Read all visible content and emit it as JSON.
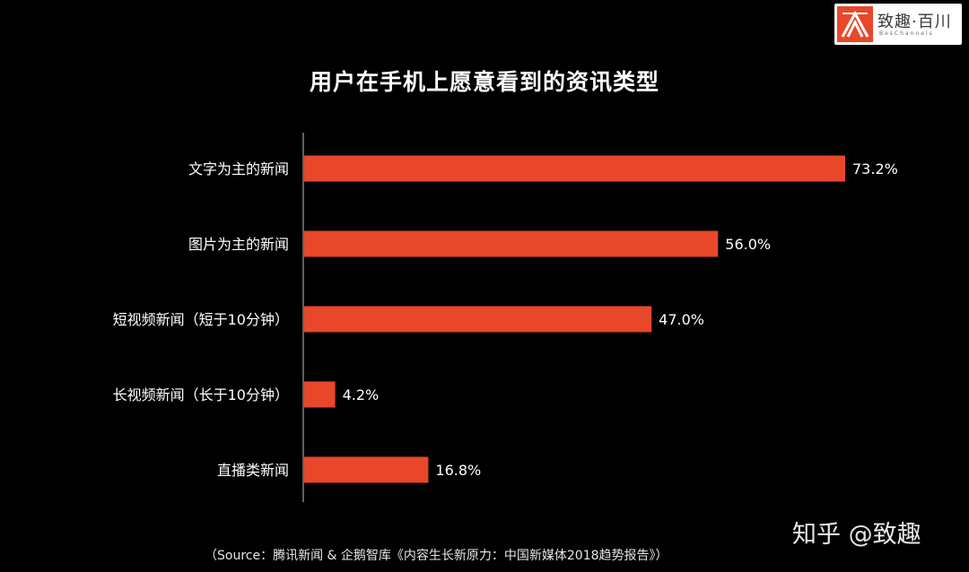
{
  "logo": {
    "name": "致趣·百川",
    "sub": "BesChannels"
  },
  "watermark": "知乎 @致趣",
  "source": "（Source：腾讯新闻 & 企鹅智库《内容生长新原力：中国新媒体2018趋势报告》）",
  "colors": {
    "bar": "#E8472A",
    "background": "#000000",
    "text": "#FFFFFF",
    "axis": "#BFBFBF"
  },
  "chart_data": {
    "type": "bar",
    "orientation": "horizontal",
    "title": "用户在手机上愿意看到的资讯类型",
    "categories": [
      "文字为主的新闻",
      "图片为主的新闻",
      "短视频新闻（短于10分钟）",
      "长视频新闻（长于10分钟）",
      "直播类新闻"
    ],
    "values": [
      73.2,
      56.0,
      47.0,
      4.2,
      16.8
    ],
    "labels": [
      "73.2%",
      "56.0%",
      "47.0%",
      "4.2%",
      "16.8%"
    ],
    "unit": "%",
    "xlim": [
      0,
      73.2
    ],
    "grid": false,
    "legend": "none"
  }
}
